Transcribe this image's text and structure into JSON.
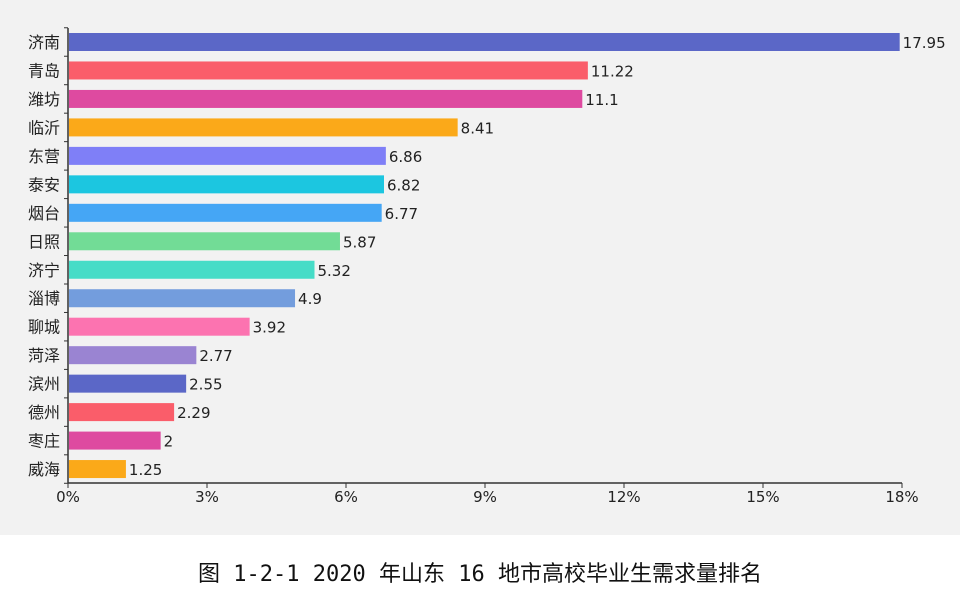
{
  "caption": "图 1-2-1 2020 年山东 16 地市高校毕业生需求量排名",
  "chart_data": {
    "type": "bar",
    "orientation": "horizontal",
    "categories": [
      "济南",
      "青岛",
      "潍坊",
      "临沂",
      "东营",
      "泰安",
      "烟台",
      "日照",
      "济宁",
      "淄博",
      "聊城",
      "菏泽",
      "滨州",
      "德州",
      "枣庄",
      "威海"
    ],
    "values": [
      17.95,
      11.22,
      11.1,
      8.41,
      6.86,
      6.82,
      6.77,
      5.87,
      5.32,
      4.9,
      3.92,
      2.77,
      2.55,
      2.29,
      2,
      1.25
    ],
    "data_labels": [
      "17.95",
      "11.22",
      "11.1",
      "8.41",
      "6.86",
      "6.82",
      "6.77",
      "5.87",
      "5.32",
      "4.9",
      "3.92",
      "2.77",
      "2.55",
      "2.29",
      "2",
      "1.25"
    ],
    "colors": [
      "#5b67c7",
      "#fa5d6a",
      "#de4aa0",
      "#fba919",
      "#7f7ff7",
      "#1cc6e0",
      "#45a6f5",
      "#72dc96",
      "#46dcc7",
      "#739ddd",
      "#fc73b0",
      "#9a84d2",
      "#5b67c7",
      "#fa5d6a",
      "#de4aa0",
      "#fba919"
    ],
    "xlim": [
      0,
      18
    ],
    "xticks": [
      "0%",
      "3%",
      "6%",
      "9%",
      "12%",
      "15%",
      "18%"
    ],
    "xtick_values": [
      0,
      3,
      6,
      9,
      12,
      15,
      18
    ],
    "grid": false,
    "legend": "none"
  }
}
